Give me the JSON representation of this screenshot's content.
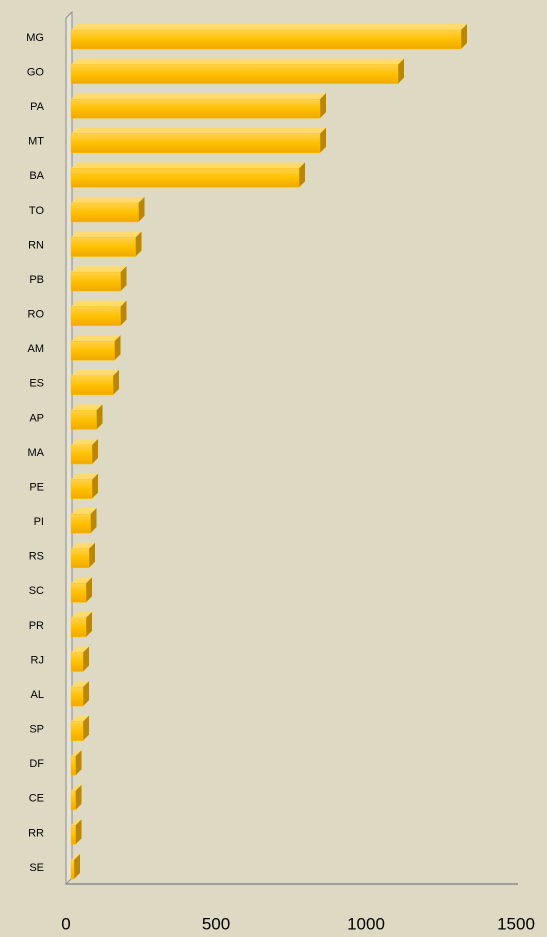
{
  "chart_data": {
    "type": "bar",
    "orientation": "horizontal",
    "categories": [
      "MG",
      "GO",
      "PA",
      "MT",
      "BA",
      "TO",
      "RN",
      "PB",
      "RO",
      "AM",
      "ES",
      "AP",
      "MA",
      "PE",
      "PI",
      "RS",
      "SC",
      "PR",
      "RJ",
      "AL",
      "SP",
      "DF",
      "CE",
      "RR",
      "SE"
    ],
    "values": [
      1300,
      1090,
      830,
      830,
      760,
      225,
      215,
      165,
      165,
      145,
      140,
      85,
      70,
      70,
      65,
      60,
      50,
      50,
      40,
      40,
      40,
      15,
      15,
      15,
      10
    ],
    "color": "#ffc000",
    "xlim": [
      0,
      1500
    ],
    "xticks": [
      0,
      500,
      1000,
      1500
    ],
    "grid": false
  }
}
